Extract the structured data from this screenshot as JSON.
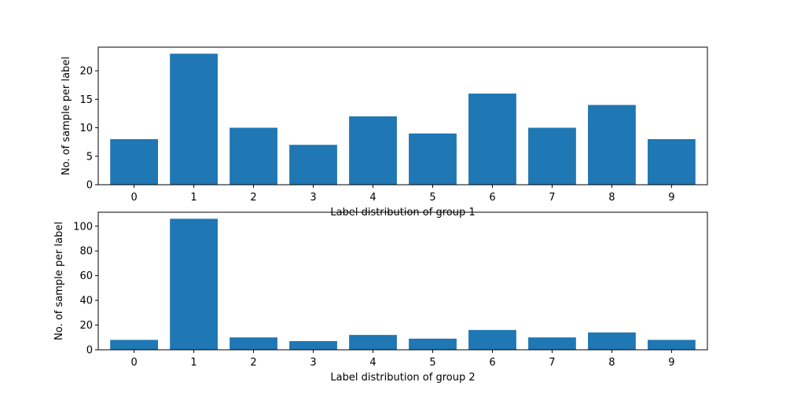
{
  "chart_data": [
    {
      "type": "bar",
      "categories": [
        "0",
        "1",
        "2",
        "3",
        "4",
        "5",
        "6",
        "7",
        "8",
        "9"
      ],
      "values": [
        8,
        23,
        10,
        7,
        12,
        9,
        16,
        10,
        14,
        8
      ],
      "title": "",
      "xlabel": "Label distribution of group 1",
      "ylabel": "No. of sample per label",
      "ylim": [
        0,
        24.15
      ],
      "yticks": [
        0,
        5,
        10,
        15,
        20
      ],
      "grid": false,
      "color": "#1f77b4"
    },
    {
      "type": "bar",
      "categories": [
        "0",
        "1",
        "2",
        "3",
        "4",
        "5",
        "6",
        "7",
        "8",
        "9"
      ],
      "values": [
        8,
        106,
        10,
        7,
        12,
        9,
        16,
        10,
        14,
        8
      ],
      "title": "",
      "xlabel": "Label distribution of group 2",
      "ylabel": "No. of sample per label",
      "ylim": [
        0,
        111.3
      ],
      "yticks": [
        0,
        20,
        40,
        60,
        80,
        100
      ],
      "grid": false,
      "color": "#1f77b4"
    }
  ]
}
